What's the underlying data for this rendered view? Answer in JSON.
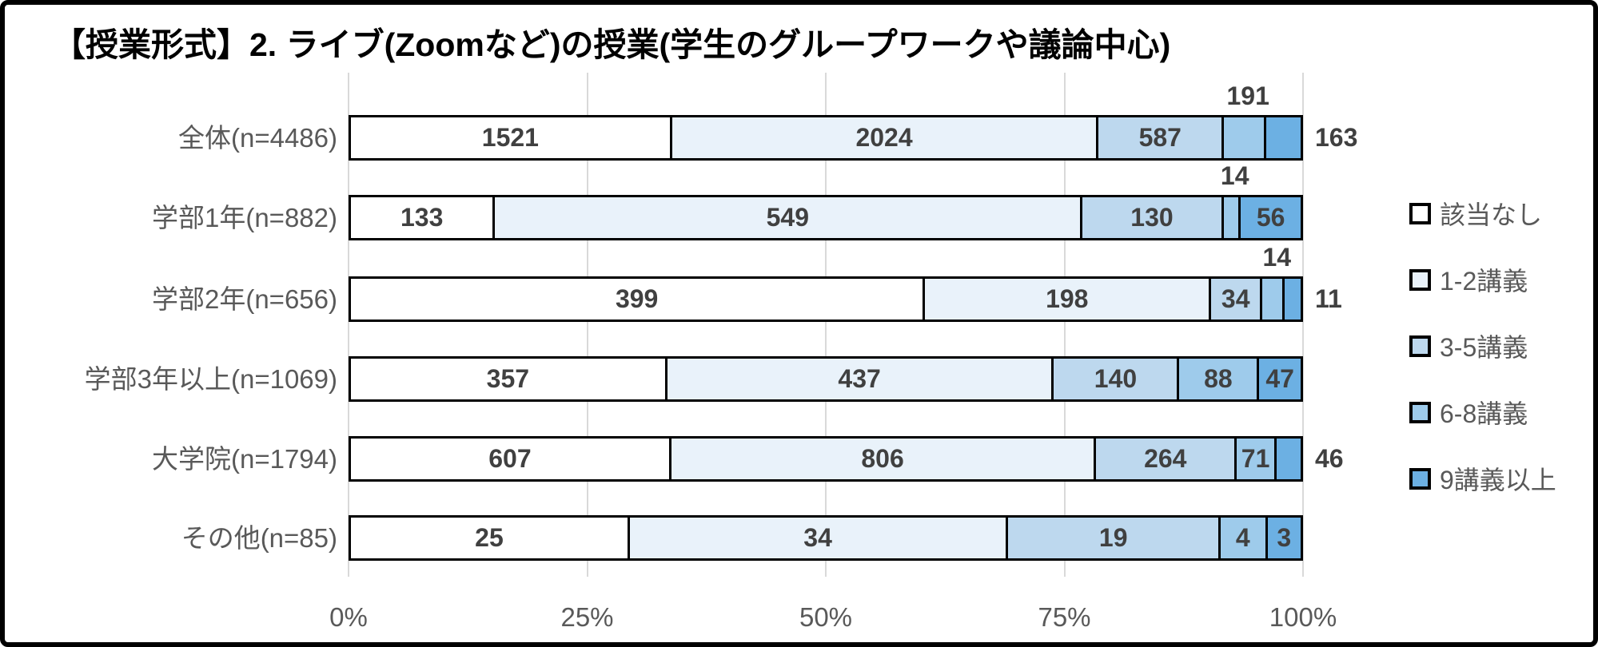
{
  "title": "【授業形式】2. ライブ(Zoomなど)の授業(学生のグループワークや議論中心)",
  "colors": {
    "frame_border": "#000000",
    "segment_border": "#000000",
    "gridline": "#d9d9d9",
    "value_text": "#404040",
    "axis_text": "#595959",
    "title_text": "#000000",
    "background": "#ffffff"
  },
  "chart_data": {
    "type": "bar",
    "stacked": true,
    "orientation": "horizontal",
    "normalized": "100% stacked (each row sums to its n)",
    "title": "【授業形式】2. ライブ(Zoomなど)の授業(学生のグループワークや議論中心)",
    "categories": [
      "全体(n=4486)",
      "学部1年(n=882)",
      "学部2年(n=656)",
      "学部3年以上(n=1069)",
      "大学院(n=1794)",
      "その他(n=85)"
    ],
    "row_totals": [
      4486,
      882,
      656,
      1069,
      1794,
      85
    ],
    "series": [
      {
        "name": "該当なし",
        "color": "#ffffff",
        "values": [
          1521,
          133,
          399,
          357,
          607,
          25
        ]
      },
      {
        "name": "1-2講義",
        "color": "#e9f2fa",
        "values": [
          2024,
          549,
          198,
          437,
          806,
          34
        ]
      },
      {
        "name": "3-5講義",
        "color": "#bdd8ee",
        "values": [
          587,
          130,
          34,
          140,
          264,
          19
        ]
      },
      {
        "name": "6-8講義",
        "color": "#9ecbeb",
        "values": [
          191,
          14,
          14,
          88,
          71,
          4
        ]
      },
      {
        "name": "9講義以上",
        "color": "#6cb0e3",
        "values": [
          163,
          56,
          11,
          47,
          46,
          3
        ]
      }
    ],
    "label_placement": [
      [
        "inside",
        "inside",
        "inside",
        "above",
        "right"
      ],
      [
        "inside",
        "inside",
        "inside",
        "above",
        "inside"
      ],
      [
        "inside",
        "inside",
        "inside",
        "above",
        "right"
      ],
      [
        "inside",
        "inside",
        "inside",
        "inside",
        "inside"
      ],
      [
        "inside",
        "inside",
        "inside",
        "inside",
        "right"
      ],
      [
        "inside",
        "inside",
        "inside",
        "inside",
        "inside"
      ]
    ],
    "x_ticks": [
      "0%",
      "25%",
      "50%",
      "75%",
      "100%"
    ],
    "xlim": [
      0,
      100
    ],
    "grid": true,
    "legend_position": "right",
    "legend_entries": [
      "該当なし",
      "1-2講義",
      "3-5講義",
      "6-8講義",
      "9講義以上"
    ]
  }
}
